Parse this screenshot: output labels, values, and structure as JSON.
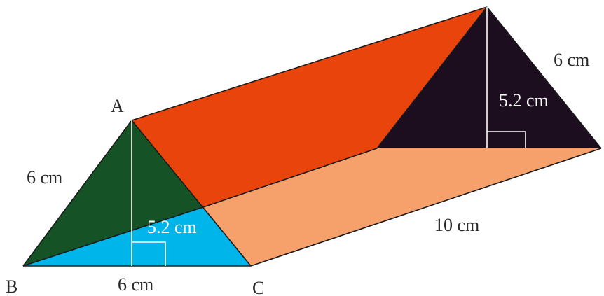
{
  "diagram": {
    "vertices": {
      "a": "A",
      "b": "B",
      "c": "C"
    },
    "labels": {
      "front_slant_side": "6 cm",
      "front_base": "6 cm",
      "front_height": "5.2 cm",
      "back_height": "5.2 cm",
      "back_slant_side": "6 cm",
      "length": "10 cm"
    },
    "colors": {
      "front_upper": "#155226",
      "front_lower": "#00b5ea",
      "top_face": "#e8440c",
      "back_face": "#1c0e1e",
      "bottom_face": "#f6a06c",
      "edge": "#1a1a1a",
      "height_line": "#ffffff"
    }
  }
}
